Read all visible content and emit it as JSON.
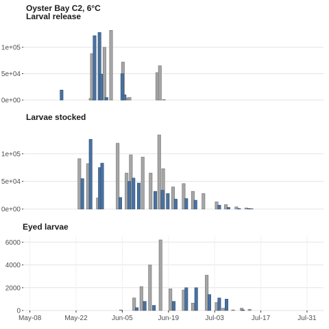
{
  "chart_data": {
    "type": "bar",
    "title": "Oyster Bay C2, 6°C",
    "colors": {
      "grey": "#a6a6a6",
      "blue": "#4a72a0",
      "grey_stroke": "#6e6e6e",
      "blue_stroke": "#2f4f74",
      "grid": "#e3e3e3"
    },
    "x_axis": {
      "ticks": [
        "May-08",
        "May-22",
        "Jun-05",
        "Jun-19",
        "Jul-03",
        "Jul-17",
        "Jul-31"
      ],
      "tick_days": [
        0,
        14,
        28,
        42,
        56,
        70,
        84
      ],
      "range_days": [
        -2,
        89
      ]
    },
    "panels": [
      {
        "title": "Larval release",
        "ylim": [
          0,
          135000
        ],
        "y_ticks": [
          0,
          50000,
          100000
        ],
        "y_tick_labels": [
          "0e+00",
          "5e+04",
          "1e+05"
        ],
        "grey": [
          [
            18.4,
            3000
          ],
          [
            18.8,
            88000
          ],
          [
            19.4,
            3000
          ],
          [
            22.6,
            100000
          ],
          [
            24.6,
            132000
          ],
          [
            28.2,
            72000
          ],
          [
            29.4,
            4000
          ],
          [
            30.2,
            5000
          ],
          [
            38.6,
            52000
          ],
          [
            39.4,
            65000
          ],
          [
            40.6,
            1000
          ]
        ],
        "blue": [
          [
            9.6,
            19000
          ],
          [
            19.6,
            122000
          ],
          [
            21.1,
            128000
          ],
          [
            21.6,
            49000
          ],
          [
            23.2,
            5000
          ],
          [
            28.0,
            50000
          ],
          [
            28.7,
            10000
          ]
        ]
      },
      {
        "title": "Larvae stocked",
        "ylim": [
          0,
          140000
        ],
        "y_ticks": [
          0,
          50000,
          100000
        ],
        "y_tick_labels": [
          "0e+00",
          "5e+04",
          "1e+05"
        ],
        "grey": [
          [
            15.0,
            91000
          ],
          [
            17.6,
            82000
          ],
          [
            20.6,
            20000
          ],
          [
            26.6,
            119000
          ],
          [
            29.3,
            65000
          ],
          [
            30.6,
            98000
          ],
          [
            34.2,
            94000
          ],
          [
            36.6,
            65000
          ],
          [
            39.2,
            134000
          ],
          [
            40.4,
            73000
          ],
          [
            43.4,
            40000
          ],
          [
            46.6,
            46000
          ],
          [
            49.4,
            32000
          ],
          [
            52.6,
            28000
          ],
          [
            56.6,
            13000
          ],
          [
            59.4,
            8000
          ],
          [
            62.6,
            4000
          ],
          [
            65.6,
            2000
          ],
          [
            67.2,
            1000
          ]
        ],
        "blue": [
          [
            15.9,
            55000
          ],
          [
            18.4,
            126000
          ],
          [
            21.2,
            75000
          ],
          [
            21.9,
            83000
          ],
          [
            27.4,
            21000
          ],
          [
            30.1,
            50000
          ],
          [
            31.4,
            56000
          ],
          [
            33.0,
            47000
          ],
          [
            38.0,
            32000
          ],
          [
            40.2,
            34000
          ],
          [
            41.8,
            28000
          ],
          [
            44.2,
            18000
          ],
          [
            47.4,
            19000
          ],
          [
            50.2,
            16000
          ],
          [
            57.4,
            7000
          ],
          [
            60.2,
            3000
          ],
          [
            63.4,
            1000
          ],
          [
            66.4,
            1000
          ]
        ]
      },
      {
        "title": "Eyed larvae",
        "ylim": [
          0,
          6500
        ],
        "y_ticks": [
          0,
          2000,
          4000,
          6000
        ],
        "y_tick_labels": [
          "0",
          "2000",
          "4000",
          "6000"
        ],
        "grey": [
          [
            27.6,
            50
          ],
          [
            31.6,
            1100
          ],
          [
            33.8,
            2100
          ],
          [
            36.4,
            4000
          ],
          [
            39.6,
            6200
          ],
          [
            42.6,
            1900
          ],
          [
            46.6,
            1800
          ],
          [
            49.4,
            650
          ],
          [
            53.6,
            3100
          ],
          [
            56.6,
            700
          ],
          [
            58.6,
            200
          ],
          [
            61.6,
            50
          ],
          [
            64.2,
            200
          ],
          [
            66.6,
            100
          ]
        ],
        "blue": [
          [
            32.4,
            250
          ],
          [
            34.8,
            800
          ],
          [
            37.6,
            450
          ],
          [
            43.6,
            800
          ],
          [
            47.4,
            2000
          ],
          [
            50.4,
            2000
          ],
          [
            54.4,
            1400
          ],
          [
            57.4,
            1100
          ],
          [
            59.6,
            1000
          ],
          [
            64.6,
            50
          ]
        ]
      }
    ]
  }
}
